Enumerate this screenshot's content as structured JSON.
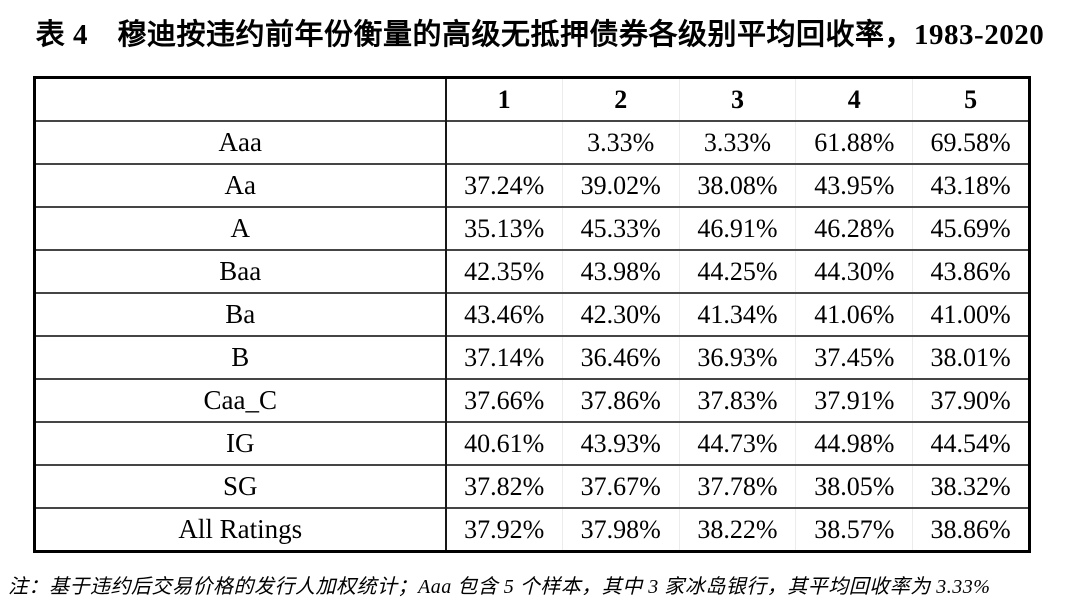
{
  "title": "表 4　穆迪按违约前年份衡量的高级无抵押债券各级别平均回收率，1983-2020",
  "table": {
    "corner": "",
    "columns": [
      "1",
      "2",
      "3",
      "4",
      "5"
    ],
    "rows": [
      {
        "label": "Aaa",
        "values": [
          "",
          "3.33%",
          "3.33%",
          "61.88%",
          "69.58%"
        ]
      },
      {
        "label": "Aa",
        "values": [
          "37.24%",
          "39.02%",
          "38.08%",
          "43.95%",
          "43.18%"
        ]
      },
      {
        "label": "A",
        "values": [
          "35.13%",
          "45.33%",
          "46.91%",
          "46.28%",
          "45.69%"
        ]
      },
      {
        "label": "Baa",
        "values": [
          "42.35%",
          "43.98%",
          "44.25%",
          "44.30%",
          "43.86%"
        ]
      },
      {
        "label": "Ba",
        "values": [
          "43.46%",
          "42.30%",
          "41.34%",
          "41.06%",
          "41.00%"
        ]
      },
      {
        "label": "B",
        "values": [
          "37.14%",
          "36.46%",
          "36.93%",
          "37.45%",
          "38.01%"
        ]
      },
      {
        "label": "Caa_C",
        "values": [
          "37.66%",
          "37.86%",
          "37.83%",
          "37.91%",
          "37.90%"
        ]
      },
      {
        "label": "IG",
        "values": [
          "40.61%",
          "43.93%",
          "44.73%",
          "44.98%",
          "44.54%"
        ]
      },
      {
        "label": "SG",
        "values": [
          "37.82%",
          "37.67%",
          "37.78%",
          "38.05%",
          "38.32%"
        ]
      },
      {
        "label": "All Ratings",
        "values": [
          "37.92%",
          "37.98%",
          "38.22%",
          "38.57%",
          "38.86%"
        ]
      }
    ]
  },
  "note": "注：基于违约后交易价格的发行人加权统计；Aaa 包含 5 个样本，其中 3 家冰岛银行，其平均回收率为 3.33%",
  "colors": {
    "text": "#000000",
    "background": "#ffffff",
    "border_outer": "#000000",
    "border_inner": "#454545"
  }
}
